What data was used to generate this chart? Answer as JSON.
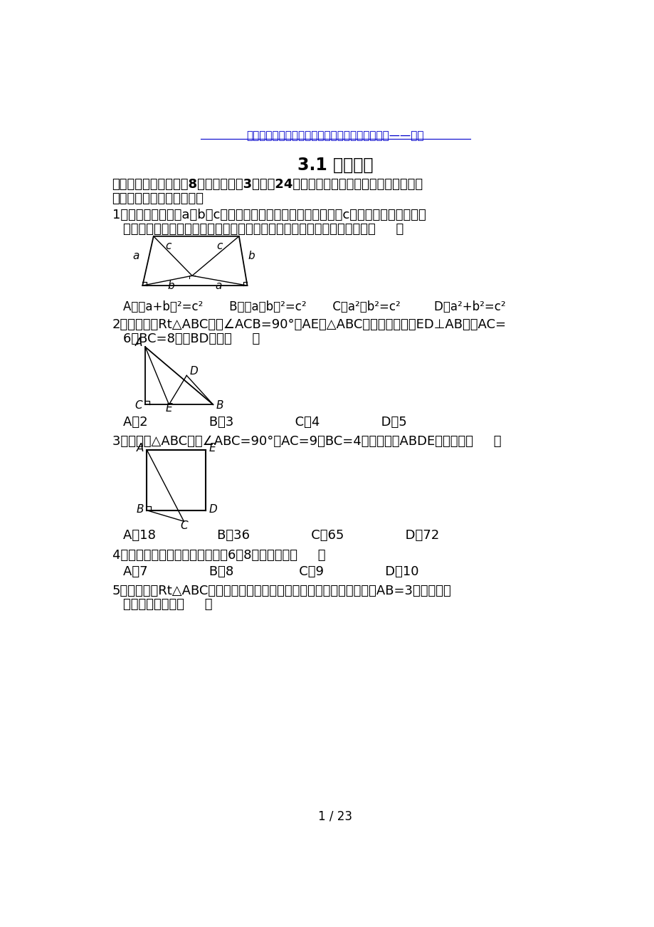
{
  "page_width": 9.2,
  "page_height": 13.02,
  "bg_color": "#ffffff",
  "header_text": "知识像烛光，能照亮一个人，也能照亮无数的人。——培根",
  "header_color": "#0000cc",
  "title": "3.1 勾股定理",
  "section1": "一、选择题（本大题共8小题，每小题3分，共24分）在每小题所给出的四个选项中，只",
  "section1b": "有一项是符合题目要求的．",
  "footer": "1 / 23"
}
